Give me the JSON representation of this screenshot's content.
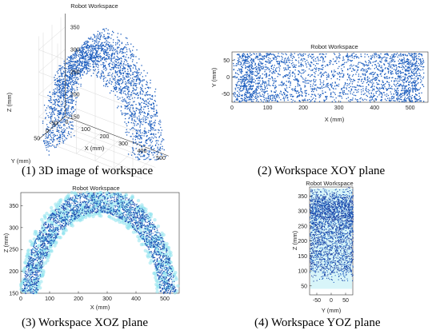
{
  "colors": {
    "points": "#1f5fbf",
    "points_dark": "#1e3e9e",
    "halo": "#8fe3ee",
    "axes": "#333333",
    "grid": "#d8d8d8"
  },
  "captions": [
    "(1) 3D image of workspace",
    "(2) Workspace XOY plane",
    "(3) Workspace XOZ plane",
    "(4) Workspace YOZ plane"
  ],
  "chart_data": [
    {
      "type": "scatter",
      "title": "Robot Workspace",
      "xlabel": "X (mm)",
      "ylabel": "Y (mm)",
      "zlabel": "Z (mm)",
      "xlim": [
        0,
        550
      ],
      "ylim": [
        -75,
        75
      ],
      "zlim": [
        150,
        380
      ],
      "x_ticks": [
        "0",
        "100",
        "200",
        "300",
        "400",
        "500"
      ],
      "y_ticks": [
        "-50",
        "0",
        "50"
      ],
      "z_ticks": [
        "150",
        "200",
        "250",
        "300",
        "350"
      ],
      "description_points": "arch of points: z approx 120+250*sin(theta), x approx 270-270*cos(theta), y in [-75,75]",
      "grid": true
    },
    {
      "type": "scatter",
      "title": "Robot Workspace",
      "xlabel": "X (mm)",
      "ylabel": "Y (mm)",
      "xlim": [
        0,
        550
      ],
      "ylim": [
        -75,
        75
      ],
      "x_ticks": [
        "0",
        "100",
        "200",
        "300",
        "400",
        "500"
      ],
      "y_ticks": [
        "-50",
        "0",
        "50"
      ],
      "grid": false
    },
    {
      "type": "scatter",
      "title": "Robot Workspace",
      "xlabel": "X (mm)",
      "ylabel": "Z (mm)",
      "xlim": [
        0,
        550
      ],
      "ylim": [
        150,
        380
      ],
      "x_ticks": [
        "0",
        "100",
        "200",
        "300",
        "400",
        "500"
      ],
      "y_ticks": [
        "150",
        "200",
        "250",
        "300",
        "350"
      ],
      "grid": false
    },
    {
      "type": "scatter",
      "title": "Robot Workspace",
      "xlabel": "Y (mm)",
      "ylabel": "Z (mm)",
      "xlim": [
        -75,
        75
      ],
      "ylim": [
        20,
        380
      ],
      "x_ticks": [
        "-50",
        "0",
        "50"
      ],
      "y_ticks": [
        "50",
        "100",
        "150",
        "200",
        "250",
        "300",
        "350"
      ],
      "grid": false
    }
  ]
}
